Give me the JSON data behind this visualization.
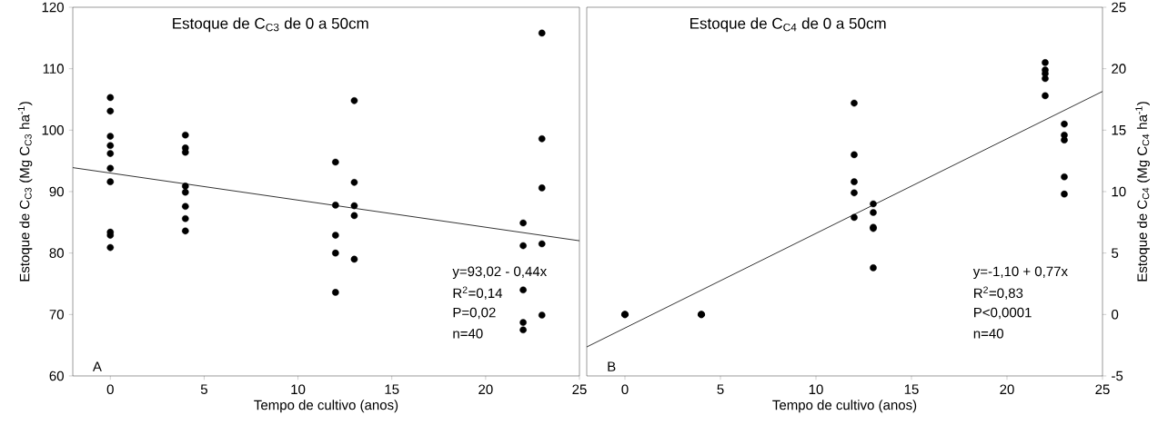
{
  "chart_data": [
    {
      "type": "scatter",
      "title": "Estoque de C$_{C3}$ de 0 a 50cm",
      "xlabel": "Tempo de cultivo (anos)",
      "ylabel": "Estoque de C$_{C3}$ (Mg C$_{C3}$ ha$^{-1}$)",
      "xlim": [
        -2,
        25
      ],
      "xticks": [
        0,
        5,
        10,
        15,
        20,
        25
      ],
      "ylim": [
        60,
        120
      ],
      "yticks": [
        60,
        70,
        80,
        90,
        100,
        110,
        120
      ],
      "grid": false,
      "marker": "circle",
      "annotations": [
        "A",
        "y=93,02 - 0,44x",
        "R$^{2}$=0,14",
        "P=0,02",
        "n=40"
      ],
      "series": [
        {
          "type": "scatter",
          "color": "#000000",
          "x": [
            0,
            0,
            0,
            0,
            0,
            0,
            0,
            0,
            0,
            0,
            4,
            4,
            4,
            4,
            4,
            4,
            4,
            4,
            12,
            12,
            12,
            12,
            12,
            13,
            13,
            13,
            13,
            13,
            22,
            22,
            22,
            22,
            22,
            23,
            23,
            23,
            23,
            23
          ],
          "values": [
            105.3,
            103.1,
            99.0,
            97.5,
            96.2,
            93.8,
            91.6,
            83.4,
            82.9,
            80.9,
            99.2,
            97.1,
            96.4,
            90.9,
            89.9,
            87.6,
            85.6,
            83.6,
            94.8,
            87.8,
            82.9,
            80.0,
            73.6,
            104.8,
            91.5,
            87.7,
            86.1,
            79.0,
            84.9,
            81.2,
            74.0,
            68.7,
            67.5,
            115.8,
            98.6,
            90.6,
            81.5,
            69.9
          ]
        },
        {
          "type": "line",
          "marker": "none",
          "color": "#000000",
          "x": [
            -2,
            25
          ],
          "values": [
            93.9,
            82.0
          ]
        }
      ]
    },
    {
      "type": "scatter",
      "title": "Estoque de C$_{C4}$ de 0 a 50cm",
      "xlabel": "Tempo de cultivo (anos)",
      "y2label": "Estoque de C$_{C4}$ (Mg C$_{C4}$ ha$^{-1}$)",
      "xlim": [
        -2,
        25
      ],
      "xticks": [
        0,
        5,
        10,
        15,
        20,
        25
      ],
      "y2lim": [
        -5,
        25
      ],
      "y2ticks": [
        -5,
        0,
        5,
        10,
        15,
        20,
        25
      ],
      "grid": false,
      "marker": "circle",
      "annotations": [
        "B",
        "y=-1,10 + 0,77x",
        "R$^{2}$=0,83",
        "P<0,0001",
        "n=40"
      ],
      "series": [
        {
          "type": "scatter",
          "axis": "y2",
          "color": "#000000",
          "x": [
            0,
            0,
            0,
            4,
            4,
            4,
            12,
            12,
            12,
            12,
            12,
            13,
            13,
            13,
            13,
            13,
            22,
            22,
            22,
            22,
            22,
            23,
            23,
            23,
            23,
            23
          ],
          "values": [
            0,
            0,
            0,
            0,
            0,
            0,
            17.2,
            13.0,
            10.8,
            9.9,
            7.9,
            9.0,
            8.3,
            7.1,
            7.0,
            3.8,
            20.5,
            19.9,
            19.6,
            19.2,
            17.8,
            15.5,
            14.6,
            14.2,
            11.2,
            9.8
          ]
        },
        {
          "type": "line",
          "axis": "y2",
          "marker": "none",
          "color": "#000000",
          "x": [
            -2,
            25
          ],
          "values": [
            -2.64,
            18.15
          ]
        }
      ]
    }
  ]
}
